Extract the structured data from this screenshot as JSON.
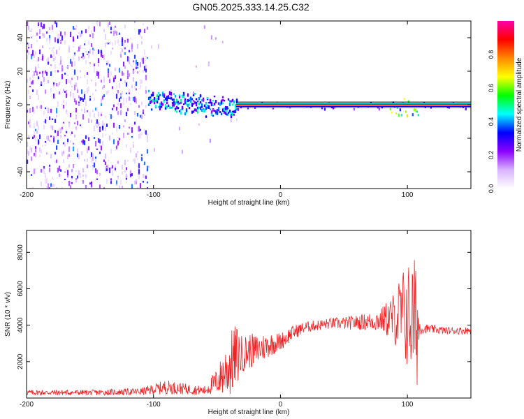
{
  "title": "GN05.2025.333.14.25.C32",
  "chart_data": [
    {
      "type": "heatmap",
      "name": "spectrogram",
      "xlabel": "Height of straight line (km)",
      "ylabel": "Frequency (Hz)",
      "xlim": [
        -200,
        150
      ],
      "ylim": [
        -50,
        50
      ],
      "xticks": [
        -200,
        -100,
        0,
        100
      ],
      "yticks": [
        -40,
        -20,
        0,
        20,
        40
      ],
      "colorbar": {
        "label": "Normalized spectral amplitude",
        "range": [
          0.0,
          1.0
        ],
        "ticks": [
          "0.0",
          "0.2",
          "0.4",
          "0.6",
          "0.8"
        ],
        "tick_values": [
          0.0,
          0.2,
          0.4,
          0.6,
          0.8
        ],
        "colors": [
          "#ffffff",
          "#d8b4fe",
          "#8b00ff",
          "#0000ff",
          "#00ffff",
          "#00ff00",
          "#ffff00",
          "#ff8800",
          "#ff0000",
          "#ff00aa"
        ]
      },
      "regions": [
        {
          "x": [
            -200,
            -105
          ],
          "description": "broadband noise",
          "level": 0.15
        },
        {
          "x": [
            -105,
            -35
          ],
          "description": "noisy carrier",
          "level": 0.3
        },
        {
          "x": [
            -35,
            150
          ],
          "description": "steady carrier near 0 Hz",
          "level": 0.85
        }
      ],
      "carrier_line_hz": 0
    },
    {
      "type": "line",
      "name": "snr",
      "xlabel": "Height of straight line (km)",
      "ylabel": "SNR (10 * v/v)",
      "xlim": [
        -200,
        150
      ],
      "ylim": [
        0,
        9200
      ],
      "xticks": [
        -200,
        -100,
        0,
        100
      ],
      "yticks": [
        2000,
        4000,
        6000,
        8000
      ],
      "series": [
        {
          "name": "SNR",
          "color": "#ee2222",
          "x": [
            -200,
            -150,
            -110,
            -90,
            -75,
            -60,
            -50,
            -40,
            -35,
            -30,
            -25,
            -20,
            -10,
            0,
            10,
            20,
            30,
            40,
            50,
            60,
            70,
            80,
            90,
            95,
            100,
            105,
            108,
            110,
            115,
            130,
            150
          ],
          "y": [
            300,
            300,
            350,
            600,
            500,
            400,
            900,
            1800,
            2300,
            2400,
            2600,
            2600,
            2900,
            3100,
            3600,
            3900,
            4000,
            4100,
            4100,
            4150,
            4200,
            4300,
            4400,
            4500,
            4500,
            4300,
            4000,
            3800,
            3800,
            3700,
            3700
          ],
          "noise_amp": [
            150,
            150,
            200,
            400,
            300,
            250,
            700,
            1800,
            1800,
            1000,
            1000,
            900,
            700,
            500,
            400,
            300,
            300,
            300,
            350,
            400,
            500,
            700,
            1500,
            2500,
            3000,
            3500,
            3500,
            300,
            250,
            200,
            200
          ]
        }
      ]
    }
  ]
}
